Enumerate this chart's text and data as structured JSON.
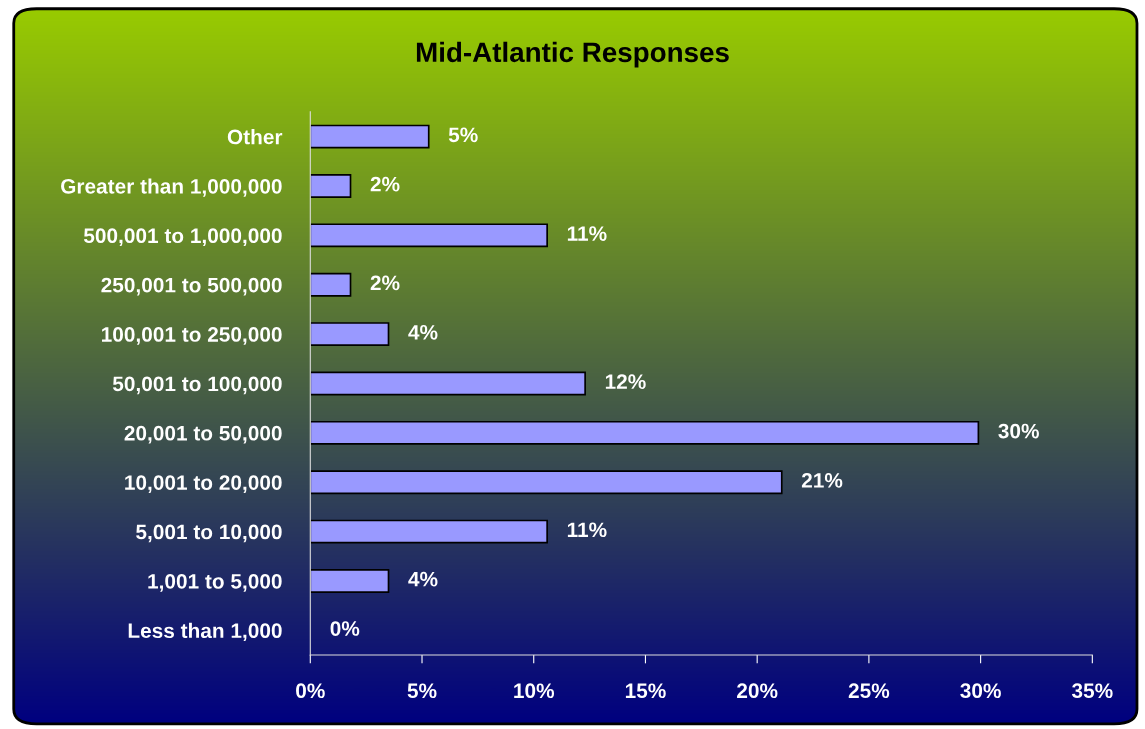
{
  "chart_data": {
    "type": "bar",
    "orientation": "horizontal",
    "title": "Mid-Atlantic Responses",
    "categories": [
      "Other",
      "Greater than 1,000,000",
      "500,001 to 1,000,000",
      "250,001 to 500,000",
      "100,001 to 250,000",
      "50,001 to 100,000",
      "20,001 to 50,000",
      "10,001 to 20,000",
      "5,001 to 10,000",
      "1,001 to 5,000",
      "Less than 1,000"
    ],
    "values": [
      5.3,
      1.8,
      10.6,
      1.8,
      3.5,
      12.3,
      29.9,
      21.1,
      10.6,
      3.5,
      0
    ],
    "value_labels": [
      "5%",
      "2%",
      "11%",
      "2%",
      "4%",
      "12%",
      "30%",
      "21%",
      "11%",
      "4%",
      "0%"
    ],
    "color": "#9999ff",
    "xlim": [
      0,
      35
    ],
    "xticks": [
      {
        "value": 0,
        "label": "0%"
      },
      {
        "value": 5,
        "label": "5%"
      },
      {
        "value": 10,
        "label": "10%"
      },
      {
        "value": 15,
        "label": "15%"
      },
      {
        "value": 20,
        "label": "20%"
      },
      {
        "value": 25,
        "label": "25%"
      },
      {
        "value": 30,
        "label": "30%"
      },
      {
        "value": 35,
        "label": "35%"
      }
    ],
    "grid": false,
    "legend": false
  }
}
